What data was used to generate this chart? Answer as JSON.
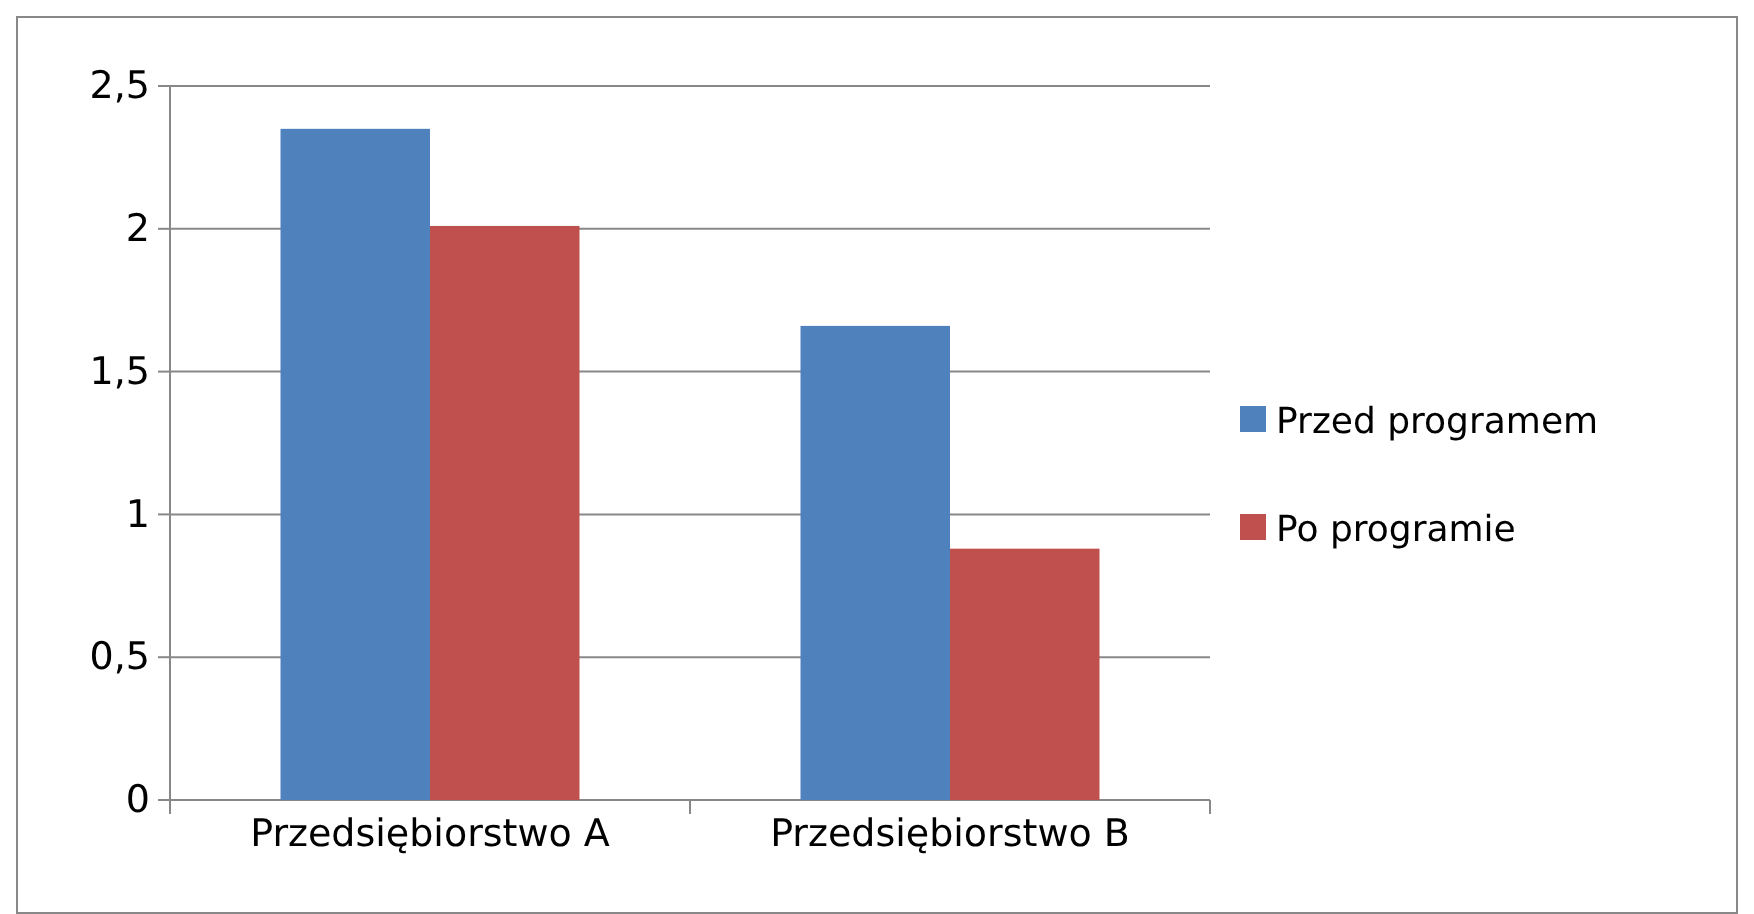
{
  "chart_data": {
    "type": "bar",
    "categories": [
      "Przedsiębiorstwo A",
      "Przedsiębiorstwo B"
    ],
    "series": [
      {
        "name": "Przed programem",
        "color": "#4f81bd",
        "values": [
          2.35,
          1.66
        ]
      },
      {
        "name": "Po programie",
        "color": "#c0504d",
        "values": [
          2.01,
          0.88
        ]
      }
    ],
    "ylim": [
      0,
      2.5
    ],
    "yticks": [
      0,
      {
        "value": 0.5,
        "label": "0,5"
      },
      1,
      {
        "value": 1.5,
        "label": "1,5"
      },
      2,
      {
        "value": 2.5,
        "label": "2,5"
      }
    ],
    "grid": "y",
    "legend": "right"
  }
}
